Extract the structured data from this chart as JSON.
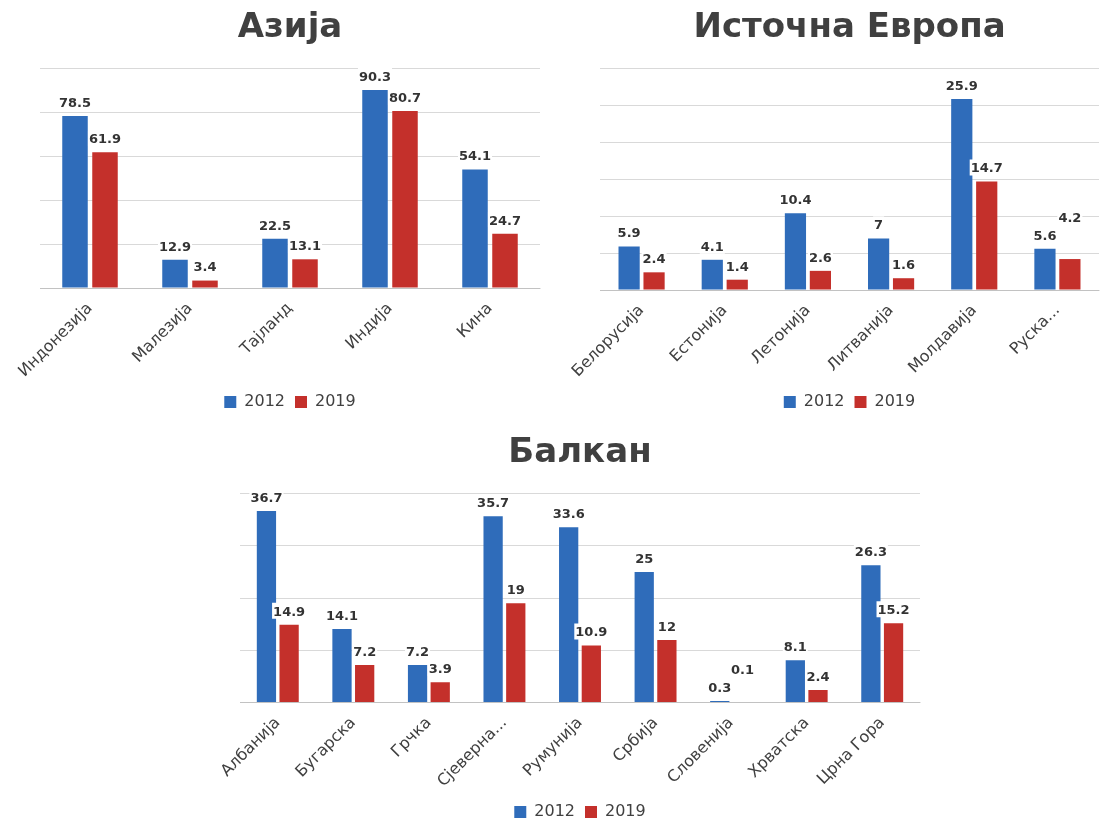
{
  "chart_data": [
    {
      "type": "bar",
      "title": "Азија",
      "categories": [
        "Индонезија",
        "Малезија",
        "Тајланд",
        "Индија",
        "Кина"
      ],
      "series": [
        {
          "name": "2012",
          "color": "#2f6cba",
          "values": [
            78.5,
            12.9,
            22.5,
            90.3,
            54.1
          ]
        },
        {
          "name": "2019",
          "color": "#c4302b",
          "values": [
            61.9,
            3.4,
            13.1,
            80.7,
            24.7
          ]
        }
      ],
      "ylim": [
        0,
        100
      ],
      "yticks": [
        0,
        20,
        40,
        60,
        80,
        100
      ],
      "grid": "y",
      "legend": "bottom",
      "data_labels": true,
      "tick_labels": "x"
    },
    {
      "type": "bar",
      "title": "Источна Европа",
      "categories": [
        "Белорусија",
        "Естонија",
        "Летонија",
        "Литванија",
        "Молдавија",
        "Руска..."
      ],
      "series": [
        {
          "name": "2012",
          "color": "#2f6cba",
          "values": [
            5.9,
            4.1,
            10.4,
            7,
            25.9,
            5.6
          ]
        },
        {
          "name": "2019",
          "color": "#c4302b",
          "values": [
            2.4,
            1.4,
            2.6,
            1.6,
            14.7,
            4.2
          ]
        }
      ],
      "ylim": [
        0,
        30
      ],
      "yticks": [
        0,
        5,
        10,
        15,
        20,
        25,
        30
      ],
      "grid": "y",
      "legend": "bottom",
      "data_labels": true,
      "tick_labels": "x"
    },
    {
      "type": "bar",
      "title": "Балкан",
      "categories": [
        "Албанија",
        "Бугарска",
        "Грчка",
        "Сјеверна...",
        "Румунија",
        "Србија",
        "Словенија",
        "Хрватска",
        "Црна Гора"
      ],
      "series": [
        {
          "name": "2012",
          "color": "#2f6cba",
          "values": [
            36.7,
            14.1,
            7.2,
            35.7,
            33.6,
            25,
            0.3,
            8.1,
            26.3
          ]
        },
        {
          "name": "2019",
          "color": "#c4302b",
          "values": [
            14.9,
            7.2,
            3.9,
            19,
            10.9,
            12,
            0.1,
            2.4,
            15.2
          ]
        }
      ],
      "ylim": [
        0,
        40
      ],
      "yticks": [
        0,
        10,
        20,
        30,
        40
      ],
      "grid": "y",
      "legend": "bottom",
      "data_labels": true,
      "tick_labels": "x"
    }
  ]
}
